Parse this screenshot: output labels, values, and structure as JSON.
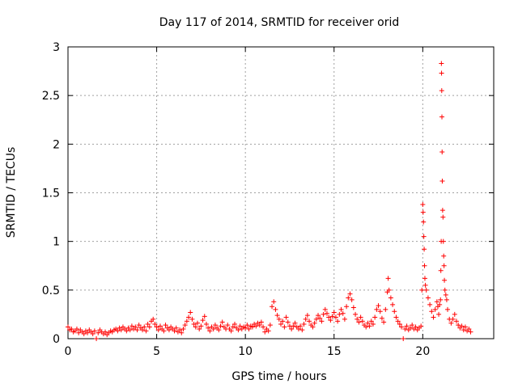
{
  "chart_data": {
    "type": "scatter",
    "title": "Day 117 of 2014, SRMTID for receiver orid",
    "xlabel": "GPS time / hours",
    "ylabel": "SRMTID / TECUs",
    "xlim": [
      0,
      24
    ],
    "ylim": [
      0,
      3
    ],
    "x_ticks": [
      0,
      5,
      10,
      15,
      20
    ],
    "x_tick_labels": [
      "0",
      "5",
      "10",
      "15",
      "20"
    ],
    "y_ticks": [
      0,
      0.5,
      1,
      1.5,
      2,
      2.5,
      3
    ],
    "y_tick_labels": [
      "0",
      "0.5",
      "1",
      "1.5",
      "2",
      "2.5",
      "3"
    ],
    "grid": true,
    "marker": "plus",
    "marker_color": "#ff0000",
    "series": [
      {
        "name": "SRMTID",
        "points": [
          [
            0.0,
            0.12
          ],
          [
            0.1,
            0.09
          ],
          [
            0.2,
            0.1
          ],
          [
            0.3,
            0.07
          ],
          [
            0.4,
            0.08
          ],
          [
            0.5,
            0.1
          ],
          [
            0.6,
            0.06
          ],
          [
            0.7,
            0.09
          ],
          [
            0.8,
            0.07
          ],
          [
            0.9,
            0.05
          ],
          [
            1.0,
            0.08
          ],
          [
            1.1,
            0.06
          ],
          [
            1.2,
            0.09
          ],
          [
            1.3,
            0.07
          ],
          [
            1.4,
            0.05
          ],
          [
            1.5,
            0.08
          ],
          [
            1.6,
            0.0
          ],
          [
            1.7,
            0.06
          ],
          [
            1.8,
            0.09
          ],
          [
            1.9,
            0.07
          ],
          [
            2.0,
            0.05
          ],
          [
            2.1,
            0.07
          ],
          [
            2.2,
            0.04
          ],
          [
            2.3,
            0.06
          ],
          [
            2.4,
            0.08
          ],
          [
            2.5,
            0.07
          ],
          [
            2.6,
            0.09
          ],
          [
            2.7,
            0.1
          ],
          [
            2.8,
            0.08
          ],
          [
            2.9,
            0.11
          ],
          [
            3.0,
            0.09
          ],
          [
            3.1,
            0.12
          ],
          [
            3.2,
            0.1
          ],
          [
            3.3,
            0.08
          ],
          [
            3.4,
            0.11
          ],
          [
            3.5,
            0.09
          ],
          [
            3.6,
            0.13
          ],
          [
            3.7,
            0.1
          ],
          [
            3.8,
            0.12
          ],
          [
            3.9,
            0.09
          ],
          [
            4.0,
            0.14
          ],
          [
            4.1,
            0.11
          ],
          [
            4.2,
            0.09
          ],
          [
            4.3,
            0.12
          ],
          [
            4.4,
            0.08
          ],
          [
            4.5,
            0.15
          ],
          [
            4.6,
            0.12
          ],
          [
            4.7,
            0.18
          ],
          [
            4.8,
            0.2
          ],
          [
            4.9,
            0.15
          ],
          [
            5.0,
            0.12
          ],
          [
            5.1,
            0.09
          ],
          [
            5.2,
            0.13
          ],
          [
            5.3,
            0.1
          ],
          [
            5.4,
            0.08
          ],
          [
            5.5,
            0.14
          ],
          [
            5.6,
            0.11
          ],
          [
            5.7,
            0.09
          ],
          [
            5.8,
            0.12
          ],
          [
            5.9,
            0.1
          ],
          [
            6.0,
            0.08
          ],
          [
            6.1,
            0.11
          ],
          [
            6.2,
            0.07
          ],
          [
            6.3,
            0.09
          ],
          [
            6.4,
            0.06
          ],
          [
            6.5,
            0.1
          ],
          [
            6.6,
            0.14
          ],
          [
            6.7,
            0.18
          ],
          [
            6.8,
            0.22
          ],
          [
            6.9,
            0.27
          ],
          [
            7.0,
            0.2
          ],
          [
            7.1,
            0.15
          ],
          [
            7.2,
            0.12
          ],
          [
            7.3,
            0.16
          ],
          [
            7.4,
            0.1
          ],
          [
            7.5,
            0.13
          ],
          [
            7.6,
            0.19
          ],
          [
            7.7,
            0.23
          ],
          [
            7.8,
            0.15
          ],
          [
            7.9,
            0.11
          ],
          [
            8.0,
            0.08
          ],
          [
            8.1,
            0.12
          ],
          [
            8.2,
            0.1
          ],
          [
            8.3,
            0.14
          ],
          [
            8.4,
            0.11
          ],
          [
            8.5,
            0.09
          ],
          [
            8.6,
            0.13
          ],
          [
            8.7,
            0.17
          ],
          [
            8.8,
            0.12
          ],
          [
            8.9,
            0.1
          ],
          [
            9.0,
            0.14
          ],
          [
            9.1,
            0.1
          ],
          [
            9.2,
            0.08
          ],
          [
            9.3,
            0.12
          ],
          [
            9.4,
            0.15
          ],
          [
            9.5,
            0.11
          ],
          [
            9.6,
            0.09
          ],
          [
            9.7,
            0.13
          ],
          [
            9.8,
            0.1
          ],
          [
            9.9,
            0.12
          ],
          [
            10.0,
            0.11
          ],
          [
            10.1,
            0.14
          ],
          [
            10.2,
            0.1
          ],
          [
            10.3,
            0.13
          ],
          [
            10.4,
            0.12
          ],
          [
            10.5,
            0.15
          ],
          [
            10.6,
            0.13
          ],
          [
            10.7,
            0.16
          ],
          [
            10.8,
            0.14
          ],
          [
            10.9,
            0.17
          ],
          [
            11.0,
            0.12
          ],
          [
            11.1,
            0.07
          ],
          [
            11.2,
            0.1
          ],
          [
            11.3,
            0.08
          ],
          [
            11.4,
            0.14
          ],
          [
            11.5,
            0.33
          ],
          [
            11.6,
            0.38
          ],
          [
            11.7,
            0.3
          ],
          [
            11.8,
            0.24
          ],
          [
            11.9,
            0.2
          ],
          [
            12.0,
            0.15
          ],
          [
            12.1,
            0.18
          ],
          [
            12.2,
            0.12
          ],
          [
            12.3,
            0.22
          ],
          [
            12.4,
            0.17
          ],
          [
            12.5,
            0.13
          ],
          [
            12.6,
            0.1
          ],
          [
            12.7,
            0.13
          ],
          [
            12.8,
            0.16
          ],
          [
            12.9,
            0.12
          ],
          [
            13.0,
            0.1
          ],
          [
            13.1,
            0.13
          ],
          [
            13.2,
            0.09
          ],
          [
            13.3,
            0.15
          ],
          [
            13.4,
            0.2
          ],
          [
            13.5,
            0.24
          ],
          [
            13.6,
            0.18
          ],
          [
            13.7,
            0.14
          ],
          [
            13.8,
            0.12
          ],
          [
            13.9,
            0.16
          ],
          [
            14.0,
            0.2
          ],
          [
            14.1,
            0.24
          ],
          [
            14.2,
            0.21
          ],
          [
            14.3,
            0.18
          ],
          [
            14.4,
            0.25
          ],
          [
            14.5,
            0.3
          ],
          [
            14.6,
            0.26
          ],
          [
            14.7,
            0.22
          ],
          [
            14.8,
            0.19
          ],
          [
            14.9,
            0.23
          ],
          [
            15.0,
            0.27
          ],
          [
            15.1,
            0.22
          ],
          [
            15.2,
            0.18
          ],
          [
            15.3,
            0.25
          ],
          [
            15.4,
            0.3
          ],
          [
            15.5,
            0.26
          ],
          [
            15.6,
            0.2
          ],
          [
            15.7,
            0.33
          ],
          [
            15.8,
            0.42
          ],
          [
            15.9,
            0.46
          ],
          [
            16.0,
            0.4
          ],
          [
            16.1,
            0.32
          ],
          [
            16.2,
            0.25
          ],
          [
            16.3,
            0.2
          ],
          [
            16.4,
            0.17
          ],
          [
            16.5,
            0.22
          ],
          [
            16.6,
            0.18
          ],
          [
            16.7,
            0.14
          ],
          [
            16.8,
            0.12
          ],
          [
            16.9,
            0.16
          ],
          [
            17.0,
            0.13
          ],
          [
            17.1,
            0.18
          ],
          [
            17.2,
            0.15
          ],
          [
            17.3,
            0.22
          ],
          [
            17.4,
            0.3
          ],
          [
            17.5,
            0.34
          ],
          [
            17.6,
            0.28
          ],
          [
            17.7,
            0.21
          ],
          [
            17.8,
            0.17
          ],
          [
            17.9,
            0.3
          ],
          [
            18.0,
            0.48
          ],
          [
            18.05,
            0.62
          ],
          [
            18.1,
            0.5
          ],
          [
            18.2,
            0.42
          ],
          [
            18.3,
            0.35
          ],
          [
            18.4,
            0.28
          ],
          [
            18.5,
            0.22
          ],
          [
            18.6,
            0.18
          ],
          [
            18.7,
            0.15
          ],
          [
            18.8,
            0.12
          ],
          [
            18.9,
            0.0
          ],
          [
            19.0,
            0.1
          ],
          [
            19.1,
            0.13
          ],
          [
            19.2,
            0.09
          ],
          [
            19.3,
            0.11
          ],
          [
            19.4,
            0.14
          ],
          [
            19.5,
            0.1
          ],
          [
            19.6,
            0.12
          ],
          [
            19.7,
            0.09
          ],
          [
            19.8,
            0.11
          ],
          [
            19.9,
            0.13
          ],
          [
            19.95,
            0.5
          ],
          [
            20.0,
            1.38
          ],
          [
            20.02,
            1.3
          ],
          [
            20.04,
            1.2
          ],
          [
            20.06,
            1.05
          ],
          [
            20.08,
            0.92
          ],
          [
            20.1,
            0.75
          ],
          [
            20.12,
            0.62
          ],
          [
            20.15,
            0.55
          ],
          [
            20.2,
            0.5
          ],
          [
            20.3,
            0.42
          ],
          [
            20.4,
            0.35
          ],
          [
            20.5,
            0.28
          ],
          [
            20.6,
            0.22
          ],
          [
            20.7,
            0.3
          ],
          [
            20.8,
            0.38
          ],
          [
            20.85,
            0.33
          ],
          [
            20.9,
            0.25
          ],
          [
            20.95,
            0.35
          ],
          [
            21.0,
            0.4
          ],
          [
            21.02,
            0.7
          ],
          [
            21.04,
            1.0
          ],
          [
            21.05,
            2.83
          ],
          [
            21.06,
            2.73
          ],
          [
            21.07,
            2.55
          ],
          [
            21.08,
            2.28
          ],
          [
            21.09,
            1.92
          ],
          [
            21.1,
            1.62
          ],
          [
            21.12,
            1.32
          ],
          [
            21.14,
            1.25
          ],
          [
            21.16,
            1.0
          ],
          [
            21.18,
            0.85
          ],
          [
            21.2,
            0.75
          ],
          [
            21.22,
            0.6
          ],
          [
            21.25,
            0.5
          ],
          [
            21.3,
            0.45
          ],
          [
            21.35,
            0.4
          ],
          [
            21.4,
            0.3
          ],
          [
            21.5,
            0.2
          ],
          [
            21.6,
            0.16
          ],
          [
            21.7,
            0.2
          ],
          [
            21.8,
            0.25
          ],
          [
            21.9,
            0.18
          ],
          [
            22.0,
            0.14
          ],
          [
            22.1,
            0.11
          ],
          [
            22.2,
            0.13
          ],
          [
            22.3,
            0.09
          ],
          [
            22.4,
            0.12
          ],
          [
            22.5,
            0.08
          ],
          [
            22.6,
            0.1
          ],
          [
            22.7,
            0.07
          ]
        ]
      }
    ]
  }
}
